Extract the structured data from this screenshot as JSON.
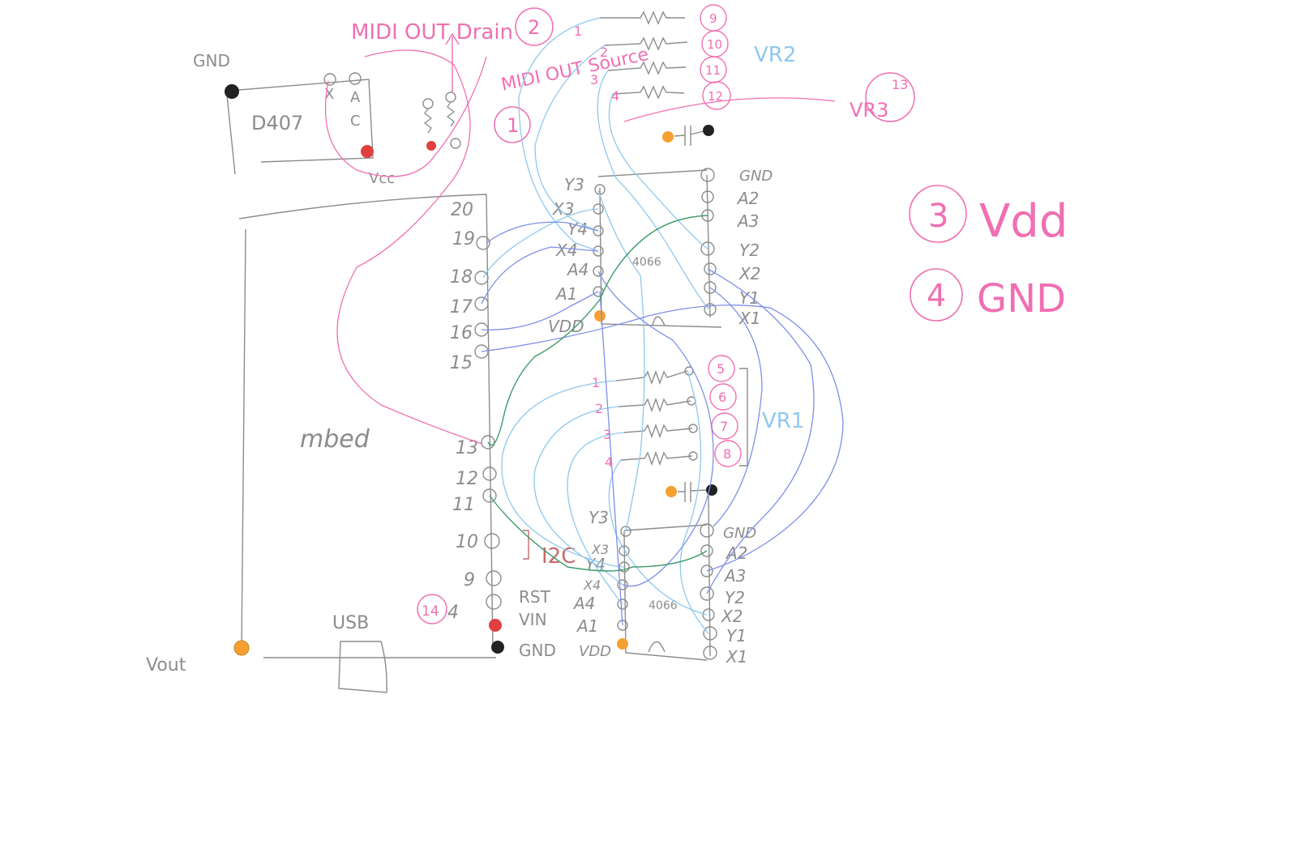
{
  "mbed": {
    "name": "mbed",
    "usb": "USB",
    "vout": "Vout",
    "left_pins": [
      "20",
      "19",
      "18",
      "17",
      "16",
      "15",
      "13",
      "12",
      "11",
      "10",
      "9",
      "4"
    ],
    "i2c": "I2C",
    "rst": "RST",
    "vin": "VIN",
    "gnd": "GND"
  },
  "dac": {
    "name": "D407",
    "gnd": "GND",
    "vcc": "Vcc",
    "pin_a": "A",
    "pin_c": "C",
    "pin_x": "X"
  },
  "midi": {
    "drain": "MIDI OUT Drain",
    "source": "MIDI OUT Source",
    "drain_num": "2",
    "source_num": "1",
    "pin4_num": "14"
  },
  "chip_top": {
    "part": "4066",
    "left_pins": [
      "Y3",
      "X3",
      "Y4",
      "X4",
      "A4",
      "A1",
      "VDD"
    ],
    "right_pins": [
      "GND",
      "A2",
      "A3",
      "Y2",
      "X2",
      "Y1",
      "X1"
    ]
  },
  "chip_bottom": {
    "part": "4066",
    "left_pins": [
      "Y3",
      "X3",
      "Y4",
      "X4",
      "A4",
      "A1",
      "VDD"
    ],
    "right_pins": [
      "GND",
      "A2",
      "A3",
      "Y2",
      "X2",
      "Y1",
      "X1"
    ]
  },
  "vr2": {
    "label": "VR2",
    "row_nums": [
      "1",
      "2",
      "3",
      "4"
    ],
    "circle_nums": [
      "9",
      "10",
      "11",
      "12"
    ]
  },
  "vr3": {
    "label": "VR3",
    "circle": "13"
  },
  "vr1": {
    "label": "VR1",
    "row_nums": [
      "1",
      "2",
      "3",
      "4"
    ],
    "circle_nums": [
      "5",
      "6",
      "7",
      "8"
    ]
  },
  "legend": [
    {
      "num": "3",
      "text": "Vdd"
    },
    {
      "num": "4",
      "text": "GND"
    }
  ],
  "colors": {
    "pencil": "#8c8c8c",
    "pink": "#f06fb2",
    "light_blue": "#8fc8ee",
    "indigo": "#7f8fe8",
    "green": "#3f9a6a",
    "orange": "#f5a030",
    "red": "#e04040"
  }
}
